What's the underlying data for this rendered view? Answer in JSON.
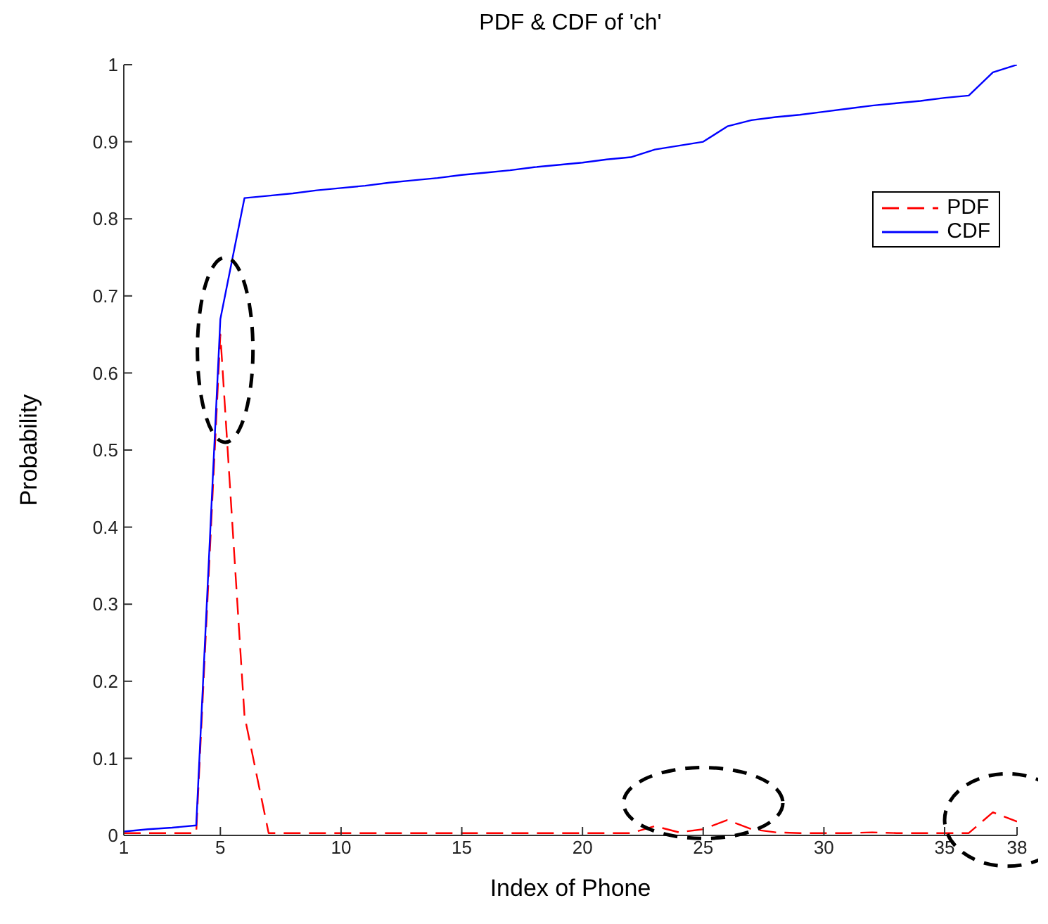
{
  "chart_data": {
    "type": "line",
    "title": "PDF & CDF of 'ch'",
    "xlabel": "Index of Phone",
    "ylabel": "Probability",
    "x": [
      1,
      2,
      3,
      4,
      5,
      6,
      7,
      8,
      9,
      10,
      11,
      12,
      13,
      14,
      15,
      16,
      17,
      18,
      19,
      20,
      21,
      22,
      23,
      24,
      25,
      26,
      27,
      28,
      29,
      30,
      31,
      32,
      33,
      34,
      35,
      36,
      37,
      38
    ],
    "series": [
      {
        "name": "PDF",
        "color": "#ff0000",
        "line_style": "dashed",
        "values": [
          0.003,
          0.003,
          0.003,
          0.003,
          0.65,
          0.155,
          0.003,
          0.003,
          0.003,
          0.003,
          0.003,
          0.003,
          0.003,
          0.003,
          0.003,
          0.003,
          0.003,
          0.003,
          0.003,
          0.003,
          0.003,
          0.003,
          0.012,
          0.004,
          0.008,
          0.02,
          0.008,
          0.004,
          0.003,
          0.003,
          0.003,
          0.004,
          0.003,
          0.003,
          0.003,
          0.003,
          0.03,
          0.018
        ]
      },
      {
        "name": "CDF",
        "color": "#0000ff",
        "line_style": "solid",
        "values": [
          0.005,
          0.008,
          0.01,
          0.013,
          0.67,
          0.827,
          0.83,
          0.833,
          0.837,
          0.84,
          0.843,
          0.847,
          0.85,
          0.853,
          0.857,
          0.86,
          0.863,
          0.867,
          0.87,
          0.873,
          0.877,
          0.88,
          0.89,
          0.895,
          0.9,
          0.92,
          0.928,
          0.932,
          0.935,
          0.939,
          0.943,
          0.947,
          0.95,
          0.953,
          0.957,
          0.96,
          0.99,
          1
        ]
      }
    ],
    "xlim": [
      1,
      38
    ],
    "xticks": [
      1,
      5,
      10,
      15,
      20,
      25,
      30,
      35,
      38
    ],
    "ylim": [
      0,
      1
    ],
    "yticks": [
      0,
      0.1,
      0.2,
      0.3,
      0.4,
      0.5,
      0.6,
      0.7,
      0.8,
      0.9,
      1
    ],
    "grid": false,
    "legend": "top right",
    "marker": "none"
  }
}
